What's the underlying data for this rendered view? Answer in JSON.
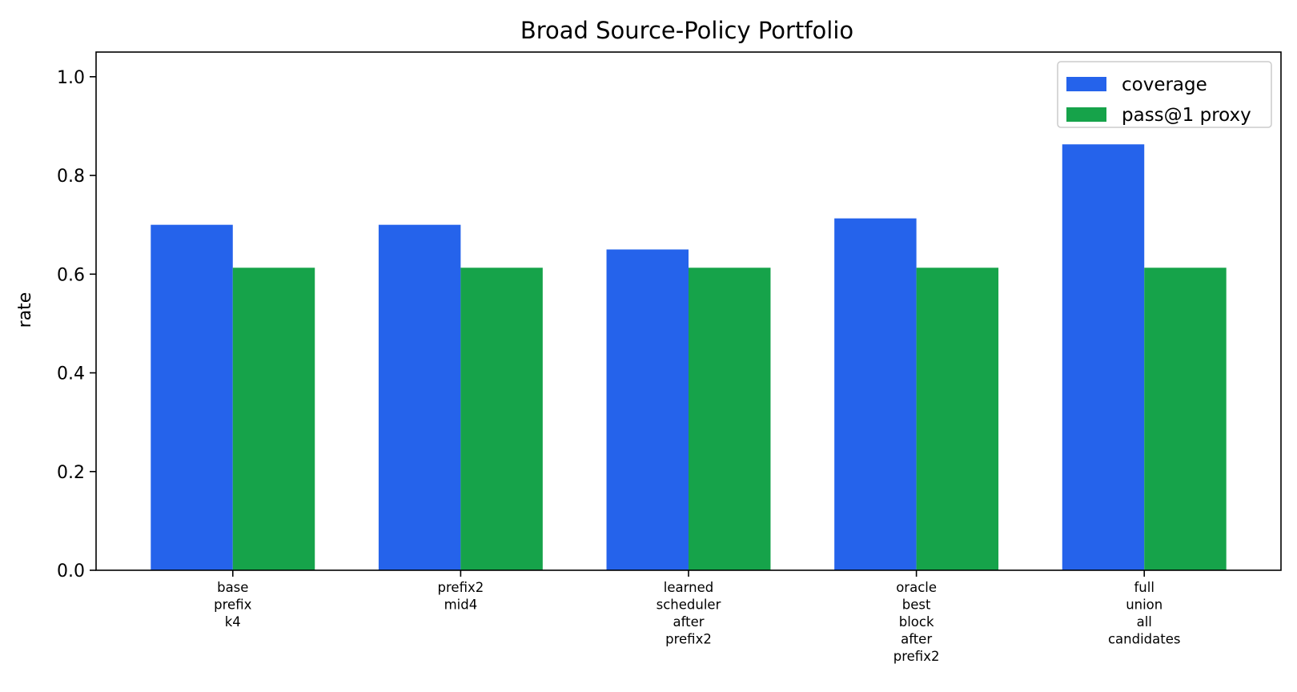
{
  "chart_data": {
    "type": "bar",
    "title": "Broad Source-Policy Portfolio",
    "xlabel": "",
    "ylabel": "rate",
    "ylim": [
      0,
      1.05
    ],
    "yticks": [
      0.0,
      0.2,
      0.4,
      0.6,
      0.8,
      1.0
    ],
    "ytick_labels": [
      "0.0",
      "0.2",
      "0.4",
      "0.6",
      "0.8",
      "1.0"
    ],
    "categories": [
      [
        "base",
        "prefix",
        "k4"
      ],
      [
        "prefix2",
        "mid4"
      ],
      [
        "learned",
        "scheduler",
        "after",
        "prefix2"
      ],
      [
        "oracle",
        "best",
        "block",
        "after",
        "prefix2"
      ],
      [
        "full",
        "union",
        "all",
        "candidates"
      ]
    ],
    "series": [
      {
        "name": "coverage",
        "color": "#2563eb",
        "values": [
          0.7,
          0.7,
          0.65,
          0.713,
          0.863
        ]
      },
      {
        "name": "pass@1 proxy",
        "color": "#16a34a",
        "values": [
          0.613,
          0.613,
          0.613,
          0.613,
          0.613
        ]
      }
    ],
    "grid": false,
    "legend_position": "top-right"
  }
}
